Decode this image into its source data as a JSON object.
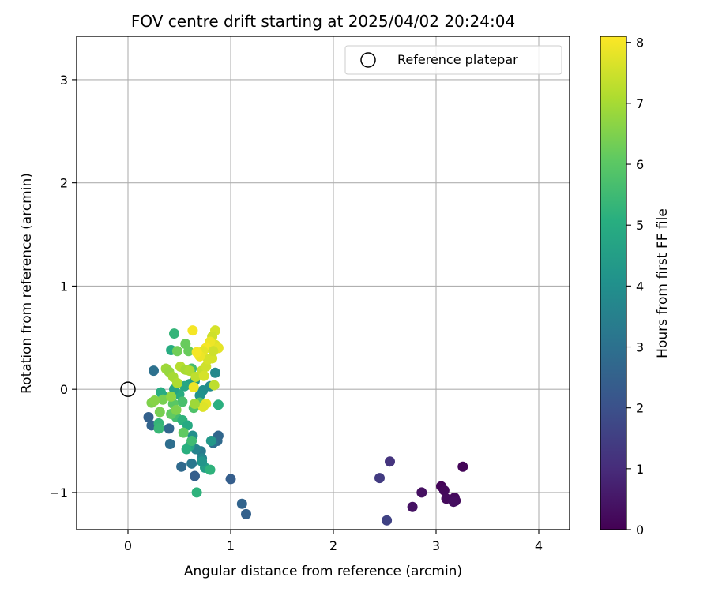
{
  "chart_data": {
    "type": "scatter",
    "title": "FOV centre drift starting at 2025/04/02 20:24:04",
    "xlabel": "Angular distance from reference (arcmin)",
    "ylabel": "Rotation from reference (arcmin)",
    "xlim": [
      -0.5,
      4.3
    ],
    "ylim": [
      -1.36,
      3.42
    ],
    "xticks": [
      0,
      1,
      2,
      3,
      4
    ],
    "yticks": [
      -1,
      0,
      1,
      2,
      3
    ],
    "xtick_labels": [
      "0",
      "1",
      "2",
      "3",
      "4"
    ],
    "ytick_labels": [
      "−1",
      "0",
      "1",
      "2",
      "3"
    ],
    "grid": true,
    "legend": {
      "position": "top-right",
      "entries": [
        "Reference platepar"
      ]
    },
    "colorbar": {
      "label": "Hours from first FF file",
      "range": [
        0,
        8.1
      ],
      "ticks": [
        0,
        1,
        2,
        3,
        4,
        5,
        6,
        7,
        8
      ],
      "tick_labels": [
        "0",
        "1",
        "2",
        "3",
        "4",
        "5",
        "6",
        "7",
        "8"
      ],
      "colormap": "viridis"
    },
    "reference_point": {
      "name": "Reference platepar",
      "x": 0,
      "y": 0
    },
    "series": [
      {
        "points": [
          [
            3.26,
            -0.75
          ],
          [
            3.05,
            -0.94
          ],
          [
            3.08,
            -0.98
          ],
          [
            3.1,
            -1.06
          ],
          [
            3.18,
            -1.05
          ],
          [
            3.19,
            -1.08
          ],
          [
            3.17,
            -1.09
          ],
          [
            2.86,
            -1.0
          ],
          [
            2.77,
            -1.14
          ],
          [
            2.55,
            -0.7
          ],
          [
            2.45,
            -0.86
          ],
          [
            2.52,
            -1.27
          ],
          [
            1.15,
            -1.21
          ],
          [
            1.11,
            -1.11
          ],
          [
            1.0,
            -0.87
          ],
          [
            0.88,
            -0.45
          ],
          [
            0.87,
            -0.5
          ],
          [
            0.83,
            -0.52
          ],
          [
            0.65,
            -0.84
          ],
          [
            0.52,
            -0.75
          ],
          [
            0.25,
            0.18
          ],
          [
            0.2,
            -0.27
          ],
          [
            0.23,
            -0.35
          ],
          [
            0.4,
            -0.38
          ],
          [
            0.41,
            -0.53
          ],
          [
            0.62,
            -0.72
          ],
          [
            0.71,
            -0.6
          ],
          [
            0.66,
            -0.58
          ],
          [
            0.72,
            -0.67
          ],
          [
            0.75,
            -0.76
          ],
          [
            0.8,
            -0.78
          ],
          [
            0.81,
            -0.5
          ],
          [
            0.63,
            -0.45
          ],
          [
            0.67,
            -1.0
          ],
          [
            0.6,
            -0.55
          ],
          [
            0.57,
            -0.58
          ],
          [
            0.72,
            -0.7
          ],
          [
            0.85,
            0.16
          ],
          [
            0.8,
            0.03
          ],
          [
            0.73,
            -0.01
          ],
          [
            0.7,
            -0.06
          ],
          [
            0.65,
            0.08
          ],
          [
            0.6,
            0.05
          ],
          [
            0.55,
            0.03
          ],
          [
            0.5,
            -0.05
          ],
          [
            0.45,
            0.0
          ],
          [
            0.35,
            -0.07
          ],
          [
            0.32,
            -0.03
          ],
          [
            0.3,
            -0.33
          ],
          [
            0.3,
            -0.38
          ],
          [
            0.47,
            -0.27
          ],
          [
            0.53,
            -0.3
          ],
          [
            0.58,
            -0.35
          ],
          [
            0.62,
            -0.5
          ],
          [
            0.88,
            -0.15
          ],
          [
            0.45,
            0.54
          ],
          [
            0.42,
            0.38
          ],
          [
            0.62,
            0.2
          ],
          [
            0.53,
            -0.12
          ],
          [
            0.64,
            -0.18
          ],
          [
            0.7,
            -0.13
          ],
          [
            0.44,
            -0.14
          ],
          [
            0.42,
            -0.24
          ],
          [
            0.56,
            0.44
          ],
          [
            0.59,
            0.37
          ],
          [
            0.48,
            0.37
          ],
          [
            0.31,
            -0.22
          ],
          [
            0.34,
            -0.1
          ],
          [
            0.23,
            -0.13
          ],
          [
            0.26,
            -0.11
          ],
          [
            0.37,
            0.2
          ],
          [
            0.4,
            0.17
          ],
          [
            0.44,
            0.12
          ],
          [
            0.48,
            0.06
          ],
          [
            0.51,
            0.22
          ],
          [
            0.56,
            0.19
          ],
          [
            0.6,
            0.18
          ],
          [
            0.66,
            0.12
          ],
          [
            0.72,
            0.18
          ],
          [
            0.76,
            0.22
          ],
          [
            0.78,
            0.29
          ],
          [
            0.82,
            0.3
          ],
          [
            0.84,
            0.04
          ],
          [
            0.85,
            0.57
          ],
          [
            0.82,
            0.51
          ],
          [
            0.85,
            0.43
          ],
          [
            0.88,
            0.4
          ],
          [
            0.8,
            0.46
          ],
          [
            0.76,
            0.4
          ],
          [
            0.73,
            0.37
          ],
          [
            0.7,
            0.32
          ],
          [
            0.67,
            0.36
          ],
          [
            0.63,
            0.57
          ],
          [
            0.64,
            0.02
          ],
          [
            0.76,
            -0.14
          ],
          [
            0.73,
            -0.17
          ],
          [
            0.54,
            -0.42
          ],
          [
            0.65,
            -0.14
          ],
          [
            0.47,
            -0.2
          ],
          [
            0.42,
            -0.07
          ],
          [
            0.83,
            0.37
          ],
          [
            0.74,
            0.13
          ]
        ],
        "hours": [
          0.1,
          0.1,
          0.15,
          0.2,
          0.2,
          0.25,
          0.3,
          0.35,
          0.4,
          1.2,
          1.4,
          1.6,
          2.5,
          2.6,
          2.4,
          2.7,
          2.8,
          3.0,
          2.4,
          2.8,
          3.0,
          2.5,
          2.6,
          2.7,
          2.9,
          3.2,
          3.3,
          3.6,
          3.7,
          4.5,
          5.2,
          4.3,
          4.0,
          5.2,
          4.8,
          5.1,
          4.2,
          3.8,
          3.9,
          4.0,
          4.1,
          4.4,
          4.6,
          4.8,
          5.0,
          4.7,
          4.9,
          5.0,
          5.3,
          5.4,
          5.6,
          5.2,
          4.9,
          5.5,
          5.1,
          5.3,
          5.0,
          5.6,
          5.7,
          5.8,
          5.9,
          6.0,
          6.1,
          6.2,
          6.2,
          6.3,
          6.4,
          6.4,
          6.5,
          6.6,
          6.9,
          6.8,
          7.0,
          7.1,
          7.2,
          7.0,
          7.1,
          7.3,
          7.4,
          7.5,
          7.6,
          7.6,
          7.3,
          7.6,
          7.5,
          7.7,
          7.8,
          7.9,
          8.0,
          7.8,
          7.9,
          8.0,
          8.0,
          7.9,
          7.8,
          7.7,
          6.1,
          6.9,
          6.5,
          6.7,
          7.5,
          7.6
        ]
      }
    ]
  }
}
